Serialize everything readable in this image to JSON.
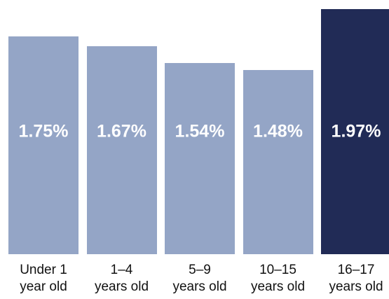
{
  "chart_data": {
    "type": "bar",
    "categories": [
      {
        "line1": "Under 1",
        "line2": "year old"
      },
      {
        "line1": "1–4",
        "line2": "years old"
      },
      {
        "line1": "5–9",
        "line2": "years old"
      },
      {
        "line1": "10–15",
        "line2": "years old"
      },
      {
        "line1": "16–17",
        "line2": "years old"
      }
    ],
    "values": [
      1.75,
      1.67,
      1.54,
      1.48,
      1.97
    ],
    "value_labels": [
      "1.75%",
      "1.67%",
      "1.54%",
      "1.48%",
      "1.97%"
    ],
    "colors": [
      "#94a5c6",
      "#94a5c6",
      "#94a5c6",
      "#94a5c6",
      "#212b56"
    ],
    "label_color": "#ffffff",
    "title": "",
    "xlabel": "",
    "ylabel": "",
    "grid": false,
    "legend": "none"
  }
}
